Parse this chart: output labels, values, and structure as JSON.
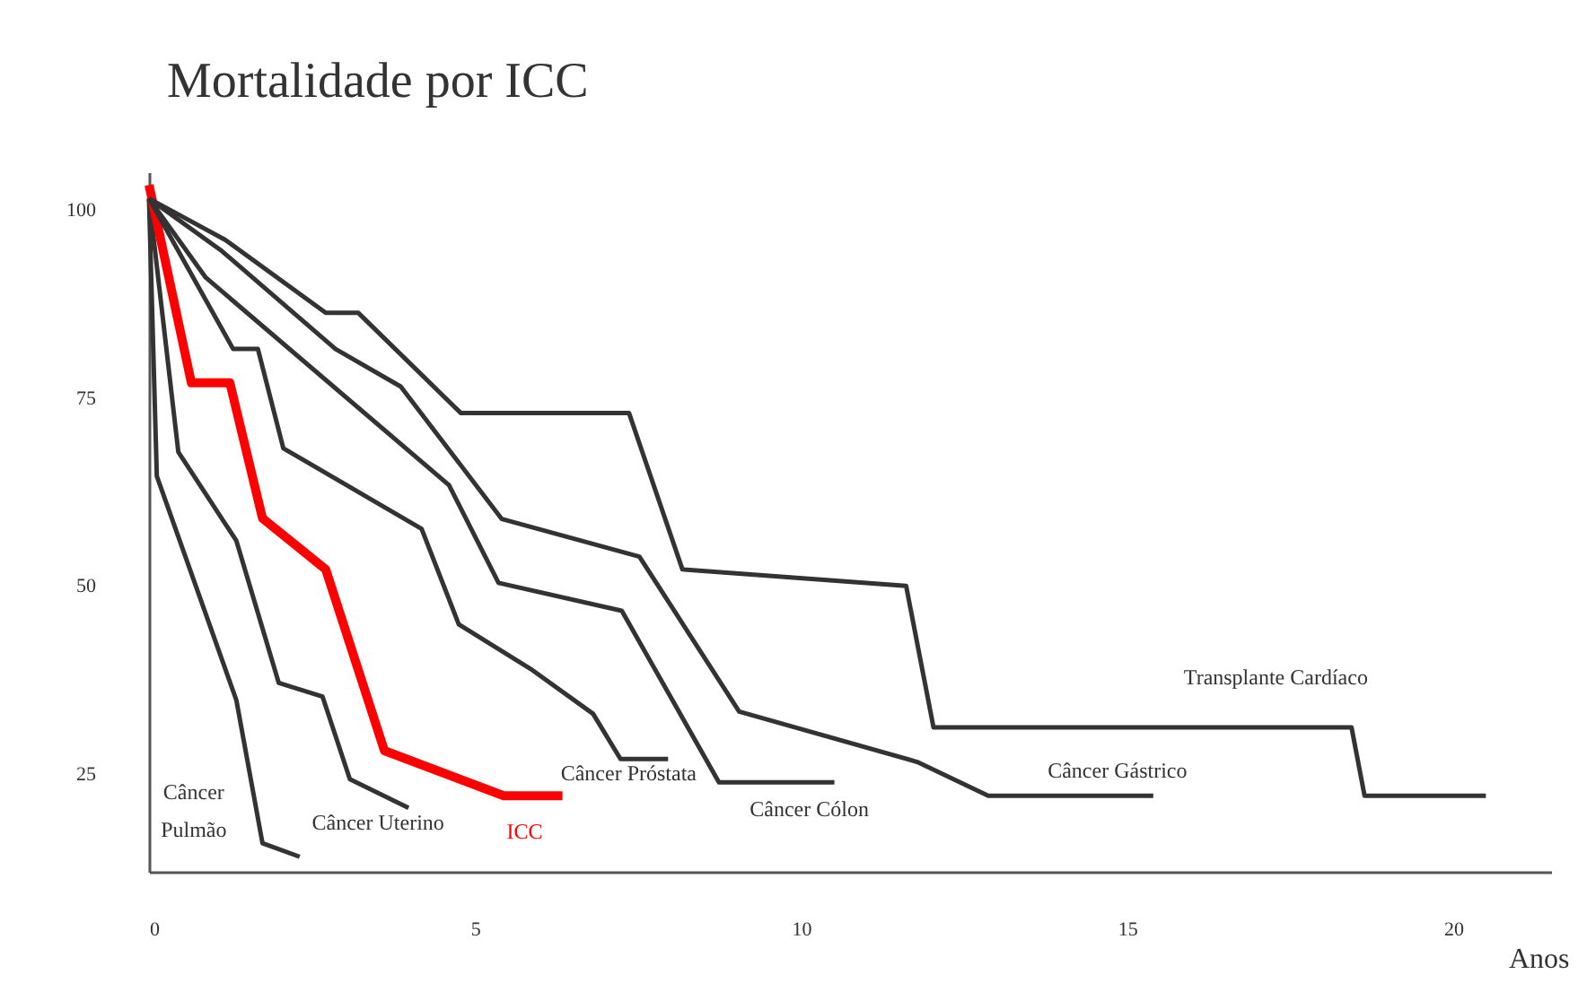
{
  "chart_data": {
    "type": "line",
    "title": "Mortalidade por ICC",
    "xlabel": "Anos",
    "xlim": [
      0,
      21.5
    ],
    "xticks": [
      0,
      5,
      10,
      15,
      20
    ],
    "ylim": [
      12,
      105
    ],
    "yticks": [
      25,
      50,
      75,
      100
    ],
    "series": [
      {
        "name": "Câncer Pulmão",
        "color": "#333333",
        "x": [
          0,
          0.12,
          1.34,
          1.74,
          2.31
        ],
        "values": [
          101.5,
          64.6,
          34.8,
          15.8,
          14.0
        ]
      },
      {
        "name": "Câncer Uterino",
        "color": "#333333",
        "x": [
          0,
          0.45,
          1.34,
          1.99,
          2.66,
          3.08,
          3.98
        ],
        "values": [
          101.5,
          67.8,
          56,
          37.1,
          35.3,
          24.3,
          20.5
        ]
      },
      {
        "name": "ICC",
        "color": "#ff0000",
        "x": [
          0,
          0.65,
          1.24,
          1.74,
          2.71,
          3.61,
          5.44,
          6.34
        ],
        "values": [
          103.3,
          77,
          77,
          59,
          52.2,
          28.1,
          22.1,
          22.1
        ]
      },
      {
        "name": "Câncer Próstata",
        "color": "#333333",
        "x": [
          0,
          1.29,
          1.67,
          2.06,
          4.18,
          4.75,
          5.88,
          6.81,
          7.23,
          7.96
        ],
        "values": [
          101.5,
          81.5,
          81.5,
          68.3,
          57.6,
          44.9,
          38.8,
          33.0,
          27.0,
          27.0
        ]
      },
      {
        "name": "Câncer Cólon",
        "color": "#333333",
        "x": [
          0,
          0.87,
          4.6,
          5.36,
          7.25,
          8.74,
          10.51
        ],
        "values": [
          101.5,
          91,
          63.4,
          50.4,
          46.7,
          23.9,
          23.9
        ]
      },
      {
        "name": "Câncer Gástrico",
        "color": "#333333",
        "x": [
          0,
          1.12,
          2.86,
          3.86,
          5.41,
          7.52,
          9.05,
          11.78,
          12.87,
          15.4
        ],
        "values": [
          101.5,
          94.5,
          81.5,
          76.5,
          58.9,
          53.9,
          33.3,
          26.6,
          22.1,
          22.1
        ]
      },
      {
        "name": "Transplante Cardíaco",
        "color": "#333333",
        "x": [
          0,
          1.17,
          2.71,
          3.21,
          4.78,
          7.36,
          8.18,
          11.61,
          12.03,
          18.44,
          18.64,
          20.5
        ],
        "values": [
          101.5,
          96,
          86.3,
          86.3,
          73.0,
          73.0,
          52.2,
          50,
          31.2,
          31.2,
          22.1,
          22.1
        ]
      }
    ]
  }
}
